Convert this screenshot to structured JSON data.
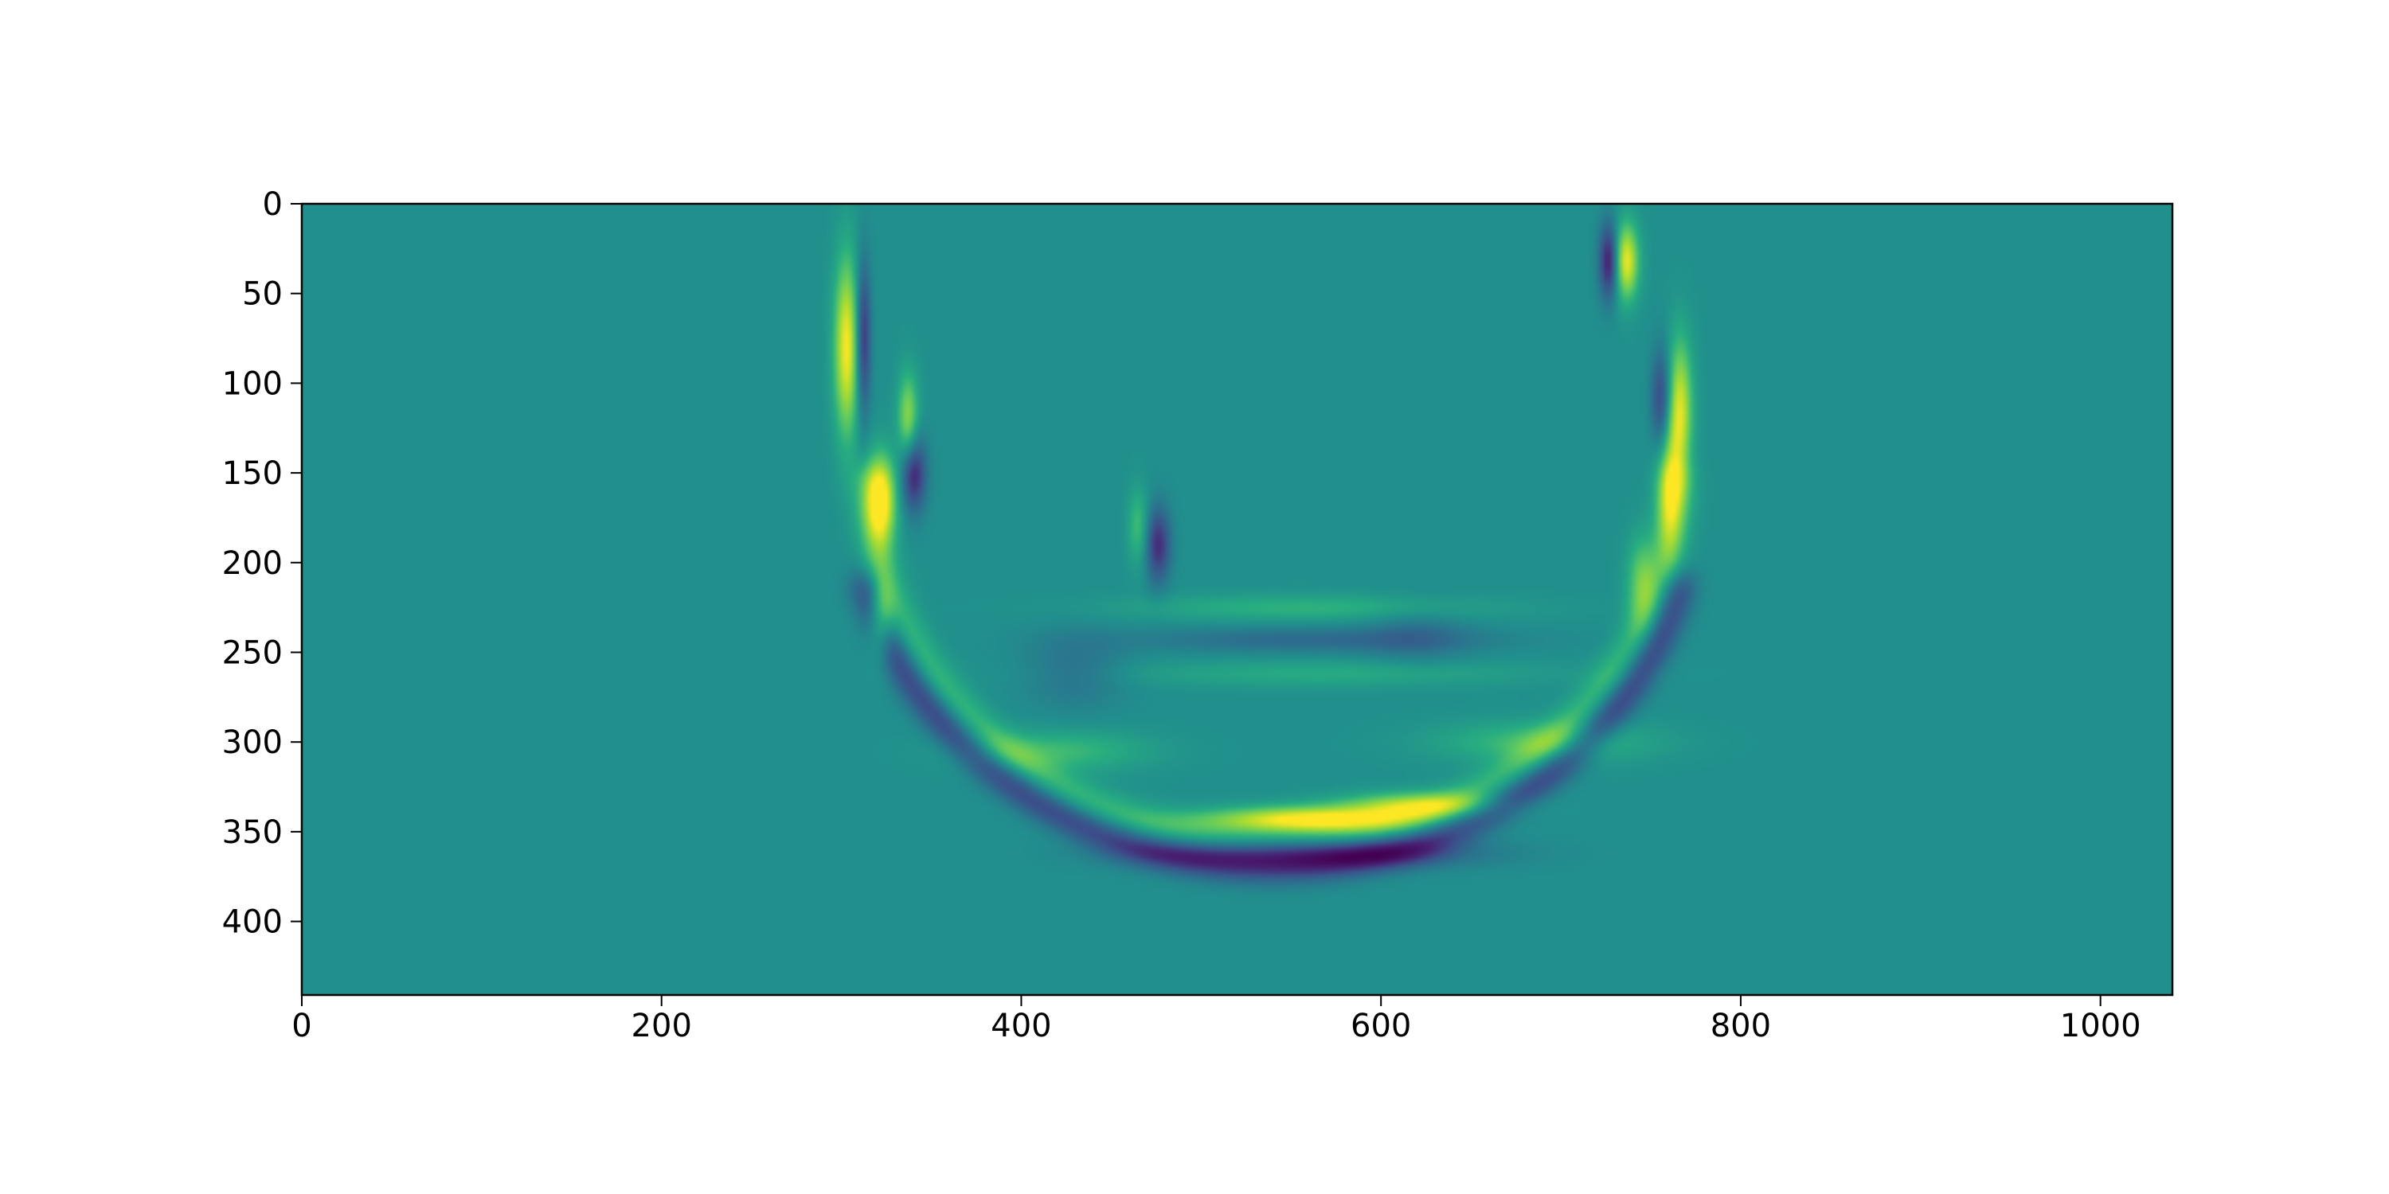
{
  "chart_data": {
    "type": "heatmap",
    "title": "",
    "xlabel": "",
    "ylabel": "",
    "xlim": [
      0,
      1040
    ],
    "ylim": [
      441,
      0
    ],
    "x_ticks": [
      0,
      200,
      400,
      600,
      800,
      1000
    ],
    "y_ticks": [
      0,
      50,
      100,
      150,
      200,
      250,
      300,
      350,
      400
    ],
    "x_tick_labels": [
      "0",
      "200",
      "400",
      "600",
      "800",
      "1000"
    ],
    "y_tick_labels": [
      "0",
      "50",
      "100",
      "150",
      "200",
      "250",
      "300",
      "350",
      "400"
    ],
    "colormap": "viridis",
    "background_value": 0.5,
    "colors": {
      "background_field": "#21908d",
      "low": "#440154",
      "high": "#fde725",
      "frame": "#000000"
    },
    "features": [
      {
        "name": "outer-arc-bright",
        "kind": "arc",
        "cx": 540,
        "cy": 150,
        "rx": 225,
        "ry": 205,
        "start_deg": 0,
        "end_deg": 180,
        "value": 0.72
      },
      {
        "name": "outer-arc-dark-halo",
        "kind": "arc",
        "cx": 540,
        "cy": 155,
        "rx": 235,
        "ry": 215,
        "start_deg": 15,
        "end_deg": 165,
        "value": 0.2
      },
      {
        "name": "bottom-bright-streak",
        "kind": "blob",
        "x": 560,
        "y": 343,
        "sx": 40,
        "sy": 5,
        "value": 1.0
      },
      {
        "name": "bottom-streak-right",
        "kind": "blob",
        "x": 620,
        "y": 335,
        "sx": 30,
        "sy": 5,
        "value": 0.85
      },
      {
        "name": "bottom-dark-below",
        "kind": "blob",
        "x": 560,
        "y": 362,
        "sx": 60,
        "sy": 6,
        "value": 0.18
      },
      {
        "name": "left-edge-bright",
        "kind": "blob",
        "x": 303,
        "y": 80,
        "sx": 5,
        "sy": 35,
        "value": 1.0
      },
      {
        "name": "left-edge-dark",
        "kind": "blob",
        "x": 312,
        "y": 75,
        "sx": 3,
        "sy": 30,
        "value": 0.12
      },
      {
        "name": "left-bright-2",
        "kind": "blob",
        "x": 322,
        "y": 165,
        "sx": 6,
        "sy": 18,
        "value": 1.0
      },
      {
        "name": "left-dark-2",
        "kind": "blob",
        "x": 340,
        "y": 150,
        "sx": 5,
        "sy": 15,
        "value": 0.1
      },
      {
        "name": "left-bright-3",
        "kind": "blob",
        "x": 337,
        "y": 120,
        "sx": 4,
        "sy": 18,
        "value": 0.85
      },
      {
        "name": "left-bright-4",
        "kind": "blob",
        "x": 322,
        "y": 230,
        "sx": 5,
        "sy": 15,
        "value": 0.85
      },
      {
        "name": "right-top-bright",
        "kind": "blob",
        "x": 736,
        "y": 32,
        "sx": 5,
        "sy": 15,
        "value": 1.0
      },
      {
        "name": "right-top-dark",
        "kind": "blob",
        "x": 727,
        "y": 32,
        "sx": 4,
        "sy": 15,
        "value": 0.05
      },
      {
        "name": "right-edge-bright",
        "kind": "blob",
        "x": 766,
        "y": 115,
        "sx": 5,
        "sy": 28,
        "value": 0.95
      },
      {
        "name": "right-edge-dark",
        "kind": "blob",
        "x": 756,
        "y": 110,
        "sx": 4,
        "sy": 20,
        "value": 0.18
      },
      {
        "name": "right-bright-2",
        "kind": "blob",
        "x": 760,
        "y": 160,
        "sx": 5,
        "sy": 25,
        "value": 0.85
      },
      {
        "name": "right-bright-3",
        "kind": "blob",
        "x": 745,
        "y": 210,
        "sx": 6,
        "sy": 18,
        "value": 0.75
      },
      {
        "name": "center-dark",
        "kind": "blob",
        "x": 476,
        "y": 190,
        "sx": 5,
        "sy": 15,
        "value": 0.15
      },
      {
        "name": "center-bright",
        "kind": "blob",
        "x": 465,
        "y": 180,
        "sx": 4,
        "sy": 15,
        "value": 0.7
      },
      {
        "name": "inner-band-1",
        "kind": "blob",
        "x": 560,
        "y": 225,
        "sx": 70,
        "sy": 5,
        "value": 0.65
      },
      {
        "name": "inner-band-2",
        "kind": "blob",
        "x": 570,
        "y": 262,
        "sx": 80,
        "sy": 5,
        "value": 0.62
      },
      {
        "name": "inner-dark-band",
        "kind": "blob",
        "x": 560,
        "y": 243,
        "sx": 70,
        "sy": 5,
        "value": 0.35
      },
      {
        "name": "lower-left-bright",
        "kind": "blob",
        "x": 420,
        "y": 305,
        "sx": 35,
        "sy": 8,
        "value": 0.68
      },
      {
        "name": "lower-right-bright",
        "kind": "blob",
        "x": 690,
        "y": 300,
        "sx": 40,
        "sy": 8,
        "value": 0.7
      },
      {
        "name": "inner-dark-left",
        "kind": "blob",
        "x": 430,
        "y": 260,
        "sx": 20,
        "sy": 15,
        "value": 0.38
      },
      {
        "name": "inner-dark-right",
        "kind": "blob",
        "x": 620,
        "y": 240,
        "sx": 20,
        "sy": 12,
        "value": 0.4
      }
    ]
  }
}
